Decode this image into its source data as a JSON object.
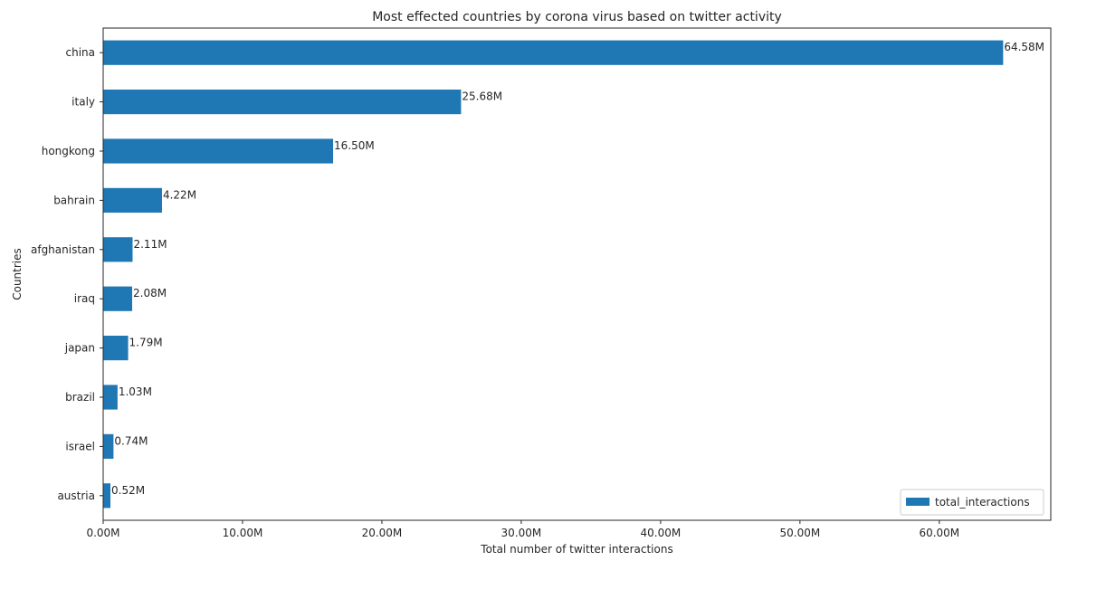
{
  "chart_data": {
    "type": "bar",
    "orientation": "horizontal",
    "title": "Most effected countries by corona virus based on twitter activity",
    "xlabel": "Total number of twitter interactions",
    "ylabel": "Countries",
    "categories": [
      "china",
      "italy",
      "hongkong",
      "bahrain",
      "afghanistan",
      "iraq",
      "japan",
      "brazil",
      "israel",
      "austria"
    ],
    "series": [
      {
        "name": "total_interactions",
        "values": [
          64.58,
          25.68,
          16.5,
          4.22,
          2.11,
          2.08,
          1.79,
          1.03,
          0.74,
          0.52
        ],
        "labels": [
          "64.58M",
          "25.68M",
          "16.50M",
          "4.22M",
          "2.11M",
          "2.08M",
          "1.79M",
          "1.03M",
          "0.74M",
          "0.52M"
        ]
      }
    ],
    "xlim": [
      0,
      68
    ],
    "xticks": [
      0,
      10,
      20,
      30,
      40,
      50,
      60
    ],
    "xtick_labels": [
      "0.00M",
      "10.00M",
      "20.00M",
      "30.00M",
      "40.00M",
      "50.00M",
      "60.00M"
    ],
    "units": "millions",
    "grid": false,
    "legend_position": "lower-right",
    "colors": {
      "bar": "#1f77b4",
      "axis": "#262626"
    }
  }
}
